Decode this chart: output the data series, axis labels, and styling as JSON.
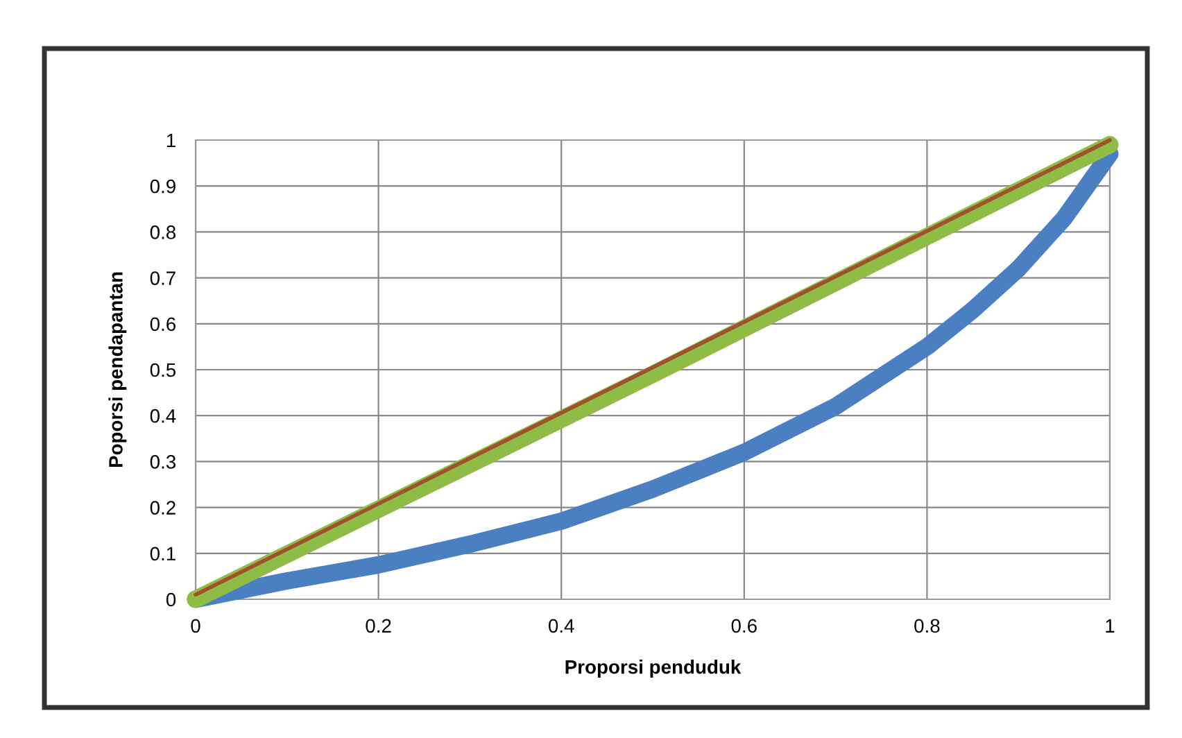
{
  "chart_data": {
    "type": "line",
    "xlabel": "Proporsi penduduk",
    "ylabel": "Poporsi pendapantan",
    "xlim": [
      0,
      1
    ],
    "ylim": [
      0,
      1
    ],
    "xticks": [
      0,
      0.2,
      0.4,
      0.6,
      0.8,
      1
    ],
    "yticks": [
      0,
      0.1,
      0.2,
      0.3,
      0.4,
      0.5,
      0.6,
      0.7,
      0.8,
      0.9,
      1
    ],
    "grid": true,
    "legend": false,
    "marker": "none",
    "line_style": "solid",
    "series": [
      {
        "color": "#4a7fc1",
        "x": [
          0,
          0.05,
          0.1,
          0.2,
          0.3,
          0.4,
          0.5,
          0.6,
          0.7,
          0.8,
          0.85,
          0.9,
          0.95,
          1
        ],
        "values": [
          0,
          0.02,
          0.04,
          0.075,
          0.12,
          0.17,
          0.24,
          0.32,
          0.42,
          0.55,
          0.63,
          0.72,
          0.83,
          0.97
        ]
      },
      {
        "color": "#8fbc45",
        "x": [
          0,
          0.5,
          1
        ],
        "values": [
          0,
          0.49,
          0.99
        ]
      },
      {
        "color": "#a0522d",
        "x": [
          0,
          0.5,
          1
        ],
        "values": [
          0.01,
          0.505,
          1
        ]
      }
    ]
  }
}
